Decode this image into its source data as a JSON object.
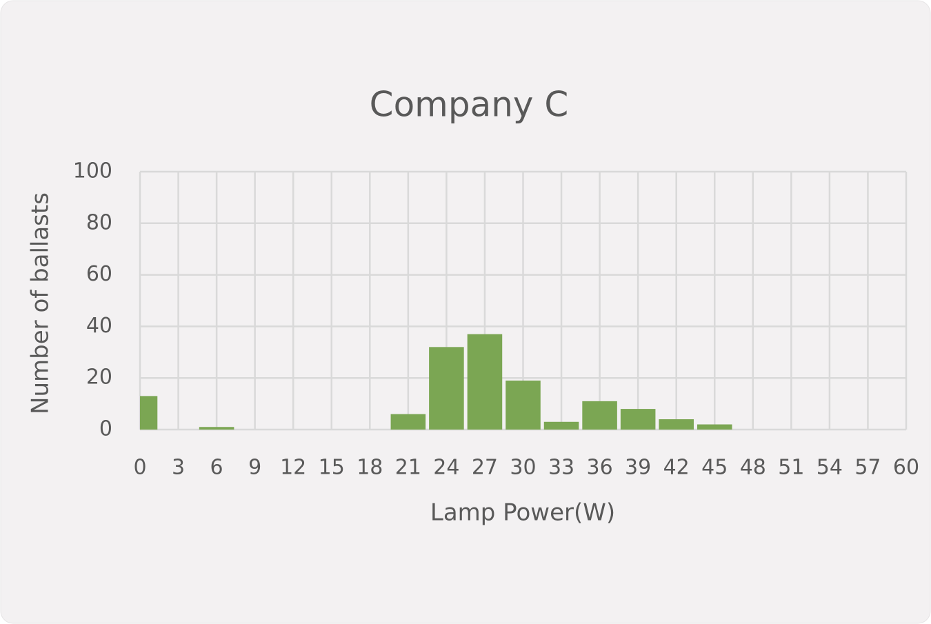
{
  "chart_data": {
    "type": "histogram",
    "title": "Company C",
    "x_label": "Lamp Power(W)",
    "y_label": "Number of ballasts",
    "bins": [
      -1.5,
      1.5,
      4.5,
      7.5,
      10.5,
      13.5,
      16.5,
      19.5,
      22.5,
      25.5,
      28.5,
      31.5,
      34.5,
      37.5,
      40.5,
      43.5,
      46.5,
      49.5,
      52.5,
      55.5,
      58.5
    ],
    "values": [
      13,
      0,
      1,
      0,
      0,
      0,
      0,
      6,
      32,
      37,
      19,
      3,
      11,
      8,
      4,
      2,
      0,
      0,
      0,
      0
    ],
    "color": "#7ba653",
    "xlim": [
      0,
      60
    ],
    "xticks": [
      0,
      3,
      6,
      9,
      12,
      15,
      18,
      21,
      24,
      27,
      30,
      33,
      36,
      39,
      42,
      45,
      48,
      51,
      54,
      57,
      60
    ],
    "ylim": [
      0,
      100
    ],
    "yticks": [
      0,
      20,
      40,
      60,
      80,
      100
    ],
    "grid": true
  }
}
